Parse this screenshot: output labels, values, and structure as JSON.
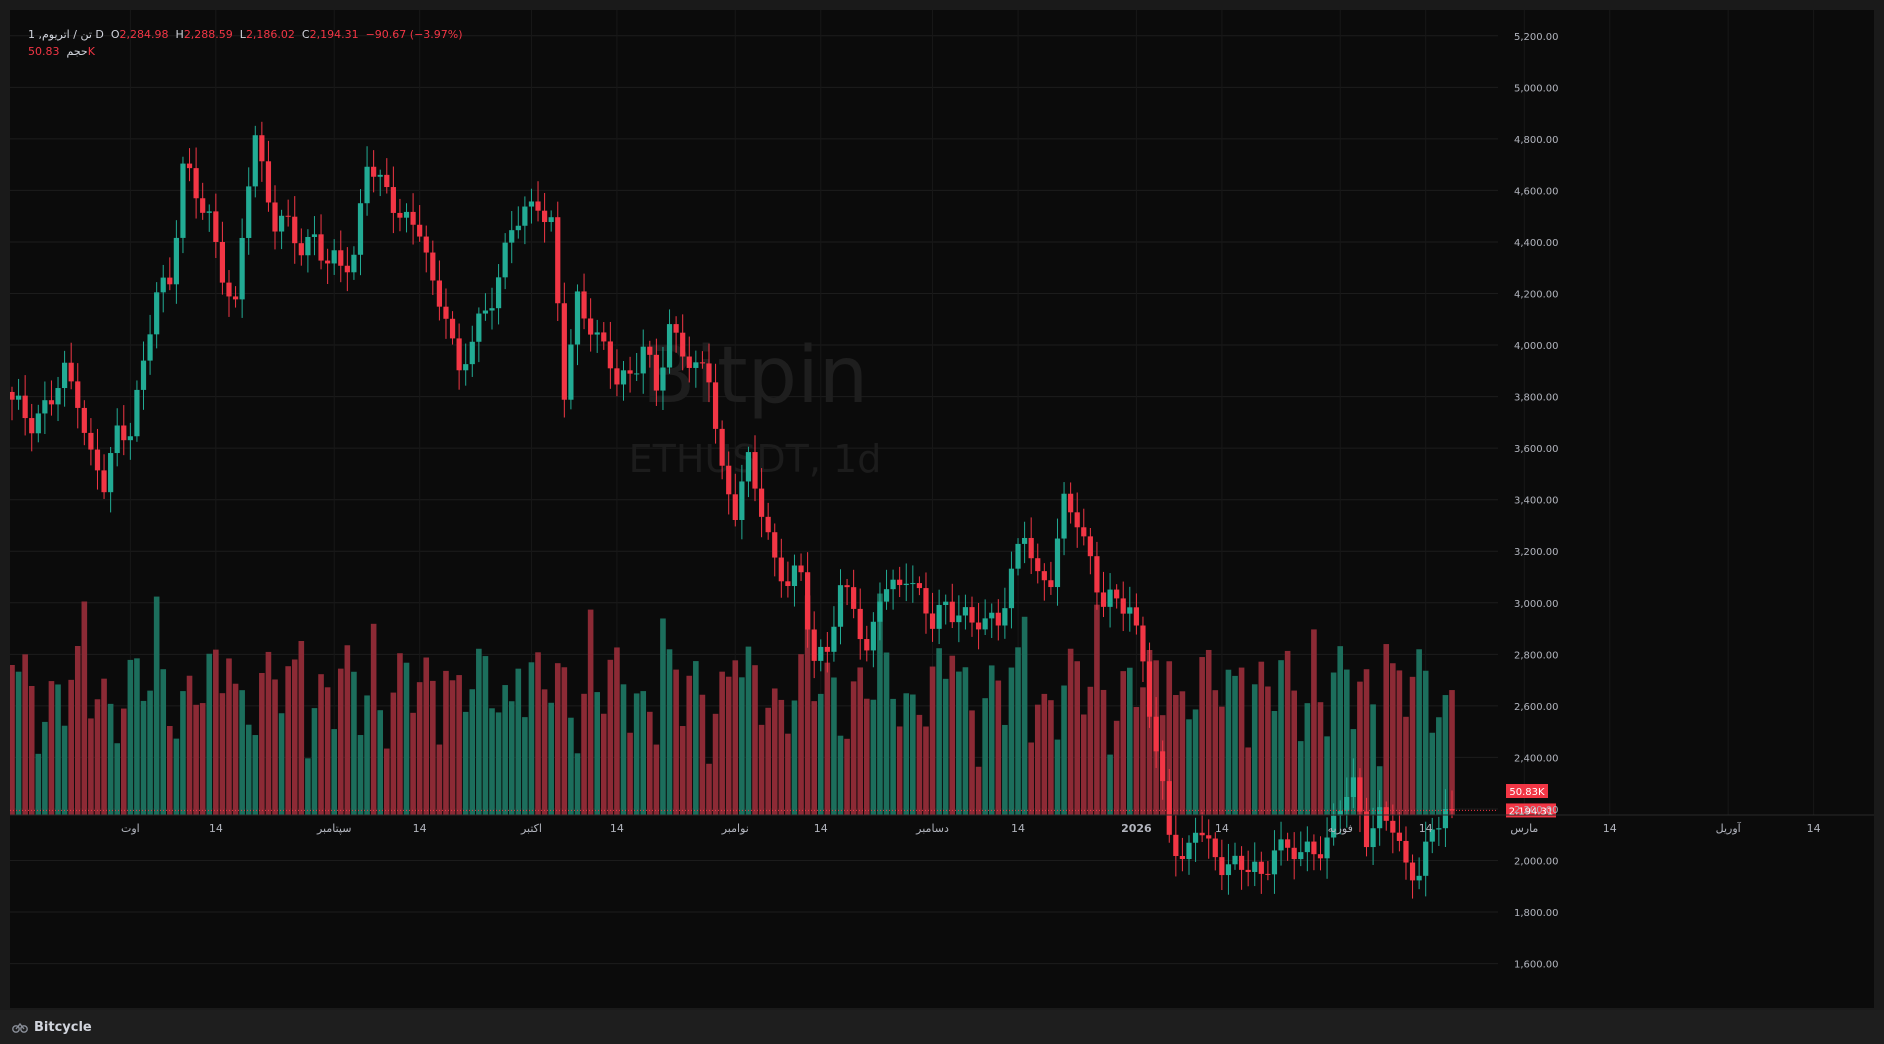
{
  "legend": {
    "symbol_label": "1 ,تن / اتریوم",
    "interval": "D",
    "open_label": "O",
    "open": "2,284.98",
    "high_label": "H",
    "high": "2,288.59",
    "low_label": "L",
    "low": "2,186.02",
    "close_label": "C",
    "close": "2,194.31",
    "change": "−90.67 (−3.97%)",
    "volume_label": "حجم",
    "volume_value": "50.83K"
  },
  "watermark": {
    "brand": "Bitpin",
    "symbol": "ETHUSDT, 1d"
  },
  "footer": {
    "brand": "Bitcycle"
  },
  "colors": {
    "up": "#22ab94",
    "down": "#f23645",
    "up_vol": "#1c6e5c",
    "down_vol": "#8c2a35",
    "background": "#0b0b0b"
  },
  "chart_data": {
    "type": "candlestick",
    "symbol": "ETHUSDT",
    "interval": "1d",
    "price_axis": {
      "ticks": [
        "5,200.00",
        "5,000.00",
        "4,800.00",
        "4,600.00",
        "4,400.00",
        "4,200.00",
        "4,000.00",
        "3,800.00",
        "3,600.00",
        "3,400.00",
        "3,200.00",
        "3,000.00",
        "2,800.00",
        "2,600.00",
        "2,400.00",
        "2,200.00",
        "2,000.00",
        "1,800.00",
        "1,600.00"
      ],
      "range": [
        1420,
        5300
      ]
    },
    "last_price": 2194.31,
    "last_price_label": "2,194.31",
    "last_volume_label": "50.83K",
    "time_axis": [
      {
        "label": "اوت",
        "day": 18
      },
      {
        "label": "14",
        "day": 31
      },
      {
        "label": "سپتامبر",
        "day": 49
      },
      {
        "label": "14",
        "day": 62
      },
      {
        "label": "اکتبر",
        "day": 79
      },
      {
        "label": "14",
        "day": 92
      },
      {
        "label": "نوامبر",
        "day": 110
      },
      {
        "label": "14",
        "day": 123
      },
      {
        "label": "دسامبر",
        "day": 140
      },
      {
        "label": "14",
        "day": 153
      },
      {
        "label": "2026",
        "day": 171,
        "bold": true
      },
      {
        "label": "14",
        "day": 184
      },
      {
        "label": "فوریه",
        "day": 202
      },
      {
        "label": "14",
        "day": 215
      },
      {
        "label": "مارس",
        "day": 230
      },
      {
        "label": "14",
        "day": 243
      },
      {
        "label": "آوریل",
        "day": 261
      },
      {
        "label": "14",
        "day": 274
      }
    ],
    "close_anchors": [
      [
        0,
        3760
      ],
      [
        3,
        3720
      ],
      [
        6,
        3780
      ],
      [
        8,
        3880
      ],
      [
        10,
        3820
      ],
      [
        12,
        3560
      ],
      [
        14,
        3440
      ],
      [
        16,
        3660
      ],
      [
        18,
        3700
      ],
      [
        20,
        3900
      ],
      [
        22,
        4200
      ],
      [
        24,
        4260
      ],
      [
        26,
        4700
      ],
      [
        28,
        4560
      ],
      [
        30,
        4500
      ],
      [
        32,
        4300
      ],
      [
        34,
        4120
      ],
      [
        36,
        4640
      ],
      [
        37,
        4820
      ],
      [
        38,
        4700
      ],
      [
        40,
        4480
      ],
      [
        42,
        4440
      ],
      [
        44,
        4380
      ],
      [
        46,
        4440
      ],
      [
        48,
        4300
      ],
      [
        50,
        4300
      ],
      [
        52,
        4360
      ],
      [
        54,
        4720
      ],
      [
        56,
        4600
      ],
      [
        58,
        4560
      ],
      [
        60,
        4500
      ],
      [
        62,
        4440
      ],
      [
        64,
        4200
      ],
      [
        66,
        4160
      ],
      [
        68,
        3880
      ],
      [
        70,
        4000
      ],
      [
        72,
        4140
      ],
      [
        74,
        4280
      ],
      [
        76,
        4440
      ],
      [
        78,
        4500
      ],
      [
        80,
        4580
      ],
      [
        82,
        4460
      ],
      [
        84,
        3800
      ],
      [
        86,
        4180
      ],
      [
        88,
        4100
      ],
      [
        90,
        3960
      ],
      [
        92,
        3860
      ],
      [
        94,
        3900
      ],
      [
        96,
        4000
      ],
      [
        98,
        3800
      ],
      [
        100,
        4080
      ],
      [
        102,
        4000
      ],
      [
        104,
        3880
      ],
      [
        106,
        3880
      ],
      [
        108,
        3520
      ],
      [
        110,
        3360
      ],
      [
        112,
        3520
      ],
      [
        114,
        3380
      ],
      [
        116,
        3170
      ],
      [
        118,
        3060
      ],
      [
        120,
        3100
      ],
      [
        122,
        2800
      ],
      [
        124,
        2820
      ],
      [
        126,
        3020
      ],
      [
        128,
        3020
      ],
      [
        130,
        2800
      ],
      [
        132,
        3020
      ],
      [
        134,
        3040
      ],
      [
        136,
        3140
      ],
      [
        138,
        3020
      ],
      [
        140,
        2900
      ],
      [
        142,
        3000
      ],
      [
        144,
        2980
      ],
      [
        146,
        2900
      ],
      [
        148,
        2920
      ],
      [
        150,
        2960
      ],
      [
        152,
        3100
      ],
      [
        154,
        3260
      ],
      [
        156,
        3100
      ],
      [
        158,
        3120
      ],
      [
        160,
        3360
      ],
      [
        162,
        3320
      ],
      [
        164,
        3180
      ],
      [
        166,
        3000
      ],
      [
        168,
        2980
      ],
      [
        170,
        3000
      ],
      [
        172,
        2800
      ],
      [
        174,
        2380
      ],
      [
        176,
        2120
      ],
      [
        178,
        2000
      ],
      [
        180,
        2140
      ],
      [
        182,
        2020
      ],
      [
        184,
        2000
      ],
      [
        186,
        2000
      ],
      [
        188,
        1960
      ],
      [
        190,
        1920
      ],
      [
        192,
        2080
      ],
      [
        194,
        2040
      ],
      [
        196,
        2000
      ],
      [
        198,
        2060
      ],
      [
        200,
        2080
      ],
      [
        202,
        2200
      ],
      [
        204,
        2280
      ],
      [
        206,
        2120
      ],
      [
        208,
        2160
      ],
      [
        210,
        2120
      ],
      [
        212,
        1980
      ],
      [
        214,
        1980
      ],
      [
        216,
        2080
      ],
      [
        218,
        2200
      ],
      [
        219,
        2194
      ]
    ]
  }
}
